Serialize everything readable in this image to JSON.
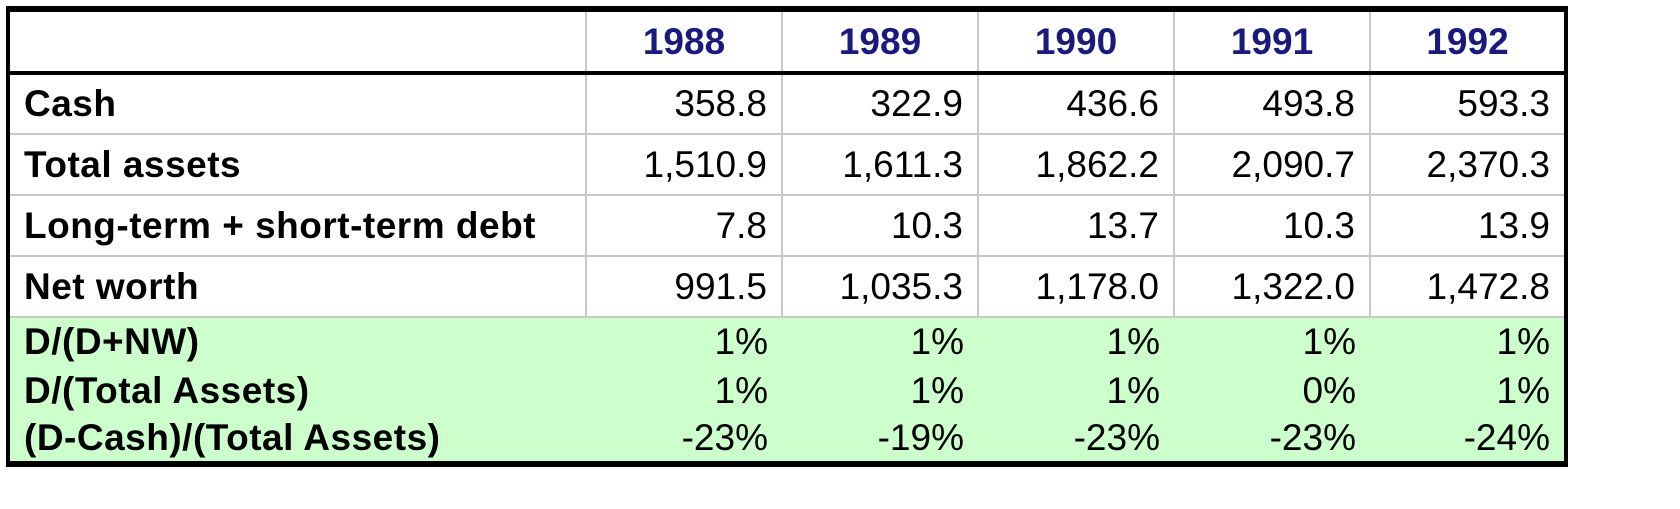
{
  "table": {
    "columns": [
      "1988",
      "1989",
      "1990",
      "1991",
      "1992"
    ],
    "rows": [
      {
        "label": "Cash",
        "values": [
          "358.8",
          "322.9",
          "436.6",
          "493.8",
          "593.3"
        ]
      },
      {
        "label": "Total assets",
        "values": [
          "1,510.9",
          "1,611.3",
          "1,862.2",
          "2,090.7",
          "2,370.3"
        ]
      },
      {
        "label": "Long-term + short-term debt",
        "values": [
          "7.8",
          "10.3",
          "13.7",
          "10.3",
          "13.9"
        ]
      },
      {
        "label": "Net worth",
        "values": [
          "991.5",
          "1,035.3",
          "1,178.0",
          "1,322.0",
          "1,472.8"
        ]
      }
    ],
    "ratio_rows": [
      {
        "label": "D/(D+NW)",
        "values": [
          "1%",
          "1%",
          "1%",
          "1%",
          "1%"
        ]
      },
      {
        "label": "D/(Total Assets)",
        "values": [
          "1%",
          "1%",
          "1%",
          "0%",
          "1%"
        ]
      },
      {
        "label": "(D-Cash)/(Total Assets)",
        "values": [
          "-23%",
          "-19%",
          "-23%",
          "-23%",
          "-24%"
        ]
      }
    ]
  },
  "colors": {
    "header_text": "#1a1a7e",
    "ratio_background": "#ccffcc",
    "grid_line": "#c8c8c8"
  }
}
